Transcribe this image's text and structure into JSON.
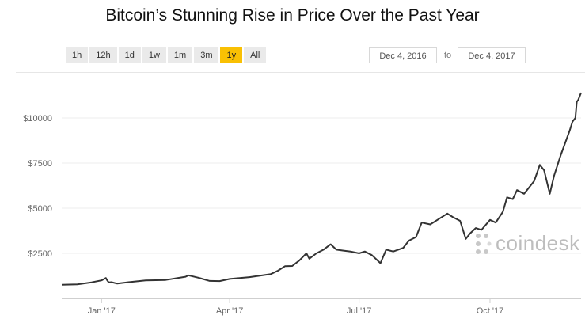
{
  "chart_data": {
    "type": "line",
    "title": "Bitcoin’s Stunning Rise in Price Over the Past Year",
    "xlabel": "",
    "ylabel": "",
    "x_ticks": [
      "Jan '17",
      "Apr '17",
      "Jul '17",
      "Oct '17"
    ],
    "x_tick_dates": [
      "2017-01-01",
      "2017-04-01",
      "2017-07-01",
      "2017-10-01"
    ],
    "xlim": [
      "2016-12-04",
      "2017-12-04"
    ],
    "y_ticks": [
      "$2500",
      "$5000",
      "$7500",
      "$10000"
    ],
    "y_tick_values": [
      2500,
      5000,
      7500,
      10000
    ],
    "ylim": [
      0,
      12500
    ],
    "grid": true,
    "line_color": "#333333",
    "series": [
      {
        "x": [
          "2016-12-04",
          "2016-12-15",
          "2016-12-25",
          "2017-01-01",
          "2017-01-04",
          "2017-01-05",
          "2017-01-06",
          "2017-01-08",
          "2017-01-12",
          "2017-01-20",
          "2017-02-01",
          "2017-02-15",
          "2017-03-01",
          "2017-03-03",
          "2017-03-10",
          "2017-03-18",
          "2017-03-25",
          "2017-04-01",
          "2017-04-15",
          "2017-04-30",
          "2017-05-05",
          "2017-05-10",
          "2017-05-15",
          "2017-05-20",
          "2017-05-25",
          "2017-05-27",
          "2017-06-01",
          "2017-06-06",
          "2017-06-11",
          "2017-06-15",
          "2017-06-20",
          "2017-06-25",
          "2017-07-01",
          "2017-07-05",
          "2017-07-10",
          "2017-07-16",
          "2017-07-20",
          "2017-07-25",
          "2017-08-01",
          "2017-08-05",
          "2017-08-10",
          "2017-08-14",
          "2017-08-20",
          "2017-08-25",
          "2017-09-01",
          "2017-09-05",
          "2017-09-10",
          "2017-09-14",
          "2017-09-17",
          "2017-09-21",
          "2017-09-25",
          "2017-10-01",
          "2017-10-05",
          "2017-10-10",
          "2017-10-13",
          "2017-10-17",
          "2017-10-20",
          "2017-10-25",
          "2017-11-01",
          "2017-11-05",
          "2017-11-08",
          "2017-11-12",
          "2017-11-15",
          "2017-11-20",
          "2017-11-26",
          "2017-11-28",
          "2017-11-30",
          "2017-12-01",
          "2017-12-02",
          "2017-12-04"
        ],
        "values": [
          760,
          780,
          890,
          1000,
          1130,
          1000,
          890,
          900,
          820,
          900,
          1000,
          1020,
          1200,
          1280,
          1150,
          970,
          960,
          1080,
          1180,
          1350,
          1540,
          1790,
          1800,
          2100,
          2500,
          2200,
          2500,
          2700,
          3000,
          2700,
          2650,
          2600,
          2500,
          2600,
          2400,
          1950,
          2700,
          2600,
          2800,
          3200,
          3400,
          4200,
          4100,
          4350,
          4700,
          4500,
          4300,
          3300,
          3600,
          3900,
          3800,
          4350,
          4200,
          4800,
          5600,
          5500,
          6000,
          5800,
          6500,
          7400,
          7100,
          5800,
          6800,
          8000,
          9300,
          9800,
          10000,
          10900,
          11000,
          11400
        ]
      }
    ]
  },
  "toolbar": {
    "ranges": [
      "1h",
      "12h",
      "1d",
      "1w",
      "1m",
      "3m",
      "1y",
      "All"
    ],
    "active_range": "1y",
    "date_from": "Dec 4, 2016",
    "to_label": "to",
    "date_to": "Dec 4, 2017",
    "accent_color": "#f9c004"
  },
  "watermark": {
    "text": "coindesk",
    "icon": "coindesk-dots-logo",
    "color": "#bdbdbd"
  }
}
